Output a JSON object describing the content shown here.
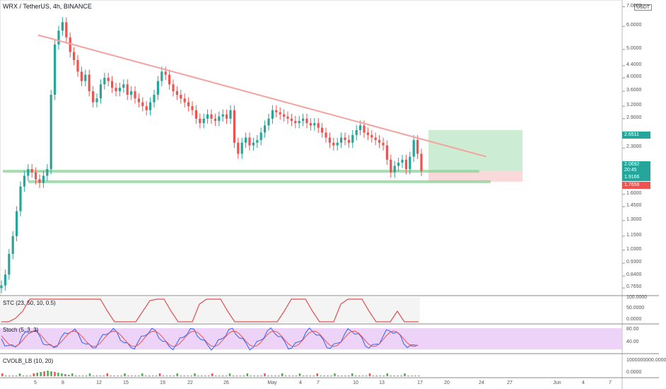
{
  "header": {
    "title": "WRX / TetherUS, 4h, BINANCE",
    "currency_badge": "USDT"
  },
  "chart_data": {
    "type": "candlestick",
    "symbol": "WRX / TetherUS",
    "interval": "4h",
    "exchange": "BINANCE",
    "y_scale": "log",
    "ylim": [
      0.72,
      7.3
    ],
    "price_ticks": [
      "7.0000",
      "6.0000",
      "5.0000",
      "4.4000",
      "4.0000",
      "3.6000",
      "3.2000",
      "2.9000",
      "2.3000",
      "1.6000",
      "1.4500",
      "1.3000",
      "1.1500",
      "1.0300",
      "0.9300",
      "0.8400",
      "0.7650"
    ],
    "date_ticks": [
      "5",
      "8",
      "12",
      "15",
      "19",
      "22",
      "26",
      "May",
      "4",
      "7",
      "10",
      "13",
      "17",
      "20",
      "24",
      "27",
      "Jun",
      "4",
      "7"
    ],
    "price_tags": [
      {
        "value": "2.6511",
        "color": "#26a69a"
      },
      {
        "value": "2.0692",
        "color": "#26a69a"
      },
      {
        "value": "20:45",
        "color": "#26a69a"
      },
      {
        "value": "1.9166",
        "color": "#26a69a"
      },
      {
        "value": "1.7658",
        "color": "#ef5350"
      }
    ],
    "close_series": [
      0.78,
      0.85,
      1.0,
      1.15,
      1.4,
      1.7,
      1.85,
      1.95,
      1.9,
      1.8,
      1.75,
      1.85,
      1.95,
      3.5,
      5.2,
      5.8,
      6.2,
      5.5,
      4.9,
      4.6,
      4.2,
      3.9,
      4.1,
      3.6,
      3.3,
      3.4,
      3.8,
      4.0,
      3.9,
      3.7,
      3.6,
      3.7,
      3.8,
      3.5,
      3.6,
      3.4,
      3.3,
      3.2,
      3.1,
      3.3,
      3.5,
      3.9,
      4.2,
      4.1,
      3.8,
      3.6,
      3.5,
      3.4,
      3.3,
      3.2,
      3.1,
      2.9,
      2.8,
      2.9,
      3.0,
      2.9,
      2.85,
      2.95,
      3.0,
      2.9,
      3.1,
      2.4,
      2.2,
      2.4,
      2.5,
      2.35,
      2.4,
      2.45,
      2.6,
      2.75,
      2.9,
      3.1,
      3.05,
      3.0,
      2.95,
      2.9,
      2.85,
      2.8,
      2.85,
      2.9,
      2.8,
      2.75,
      2.8,
      2.7,
      2.6,
      2.5,
      2.4,
      2.35,
      2.4,
      2.5,
      2.45,
      2.4,
      2.55,
      2.65,
      2.75,
      2.6,
      2.55,
      2.5,
      2.45,
      2.4,
      2.35,
      2.1,
      1.9,
      2.0,
      2.05,
      2.1,
      1.95,
      2.15,
      2.45,
      2.2,
      1.92
    ],
    "trendline": [
      {
        "date": "5",
        "price": 5.6
      },
      {
        "date": "24",
        "price": 2.15
      }
    ],
    "support_levels": [
      1.9166,
      1.7658
    ],
    "position_box": {
      "entry": 1.9166,
      "target": 2.6511,
      "stop": 1.7658
    },
    "indicators": [
      {
        "name": "STC (23, 50, 10, 0.5)",
        "levels": [
          "100.0000",
          "50.0000",
          "0.0000"
        ]
      },
      {
        "name": "Stoch (5, 3, 3)",
        "levels": [
          "80.00",
          "40.00"
        ]
      },
      {
        "name": "CVOLB_LB (10, 20)",
        "levels": [
          "1000000000.0000",
          "0.0000"
        ]
      }
    ]
  }
}
